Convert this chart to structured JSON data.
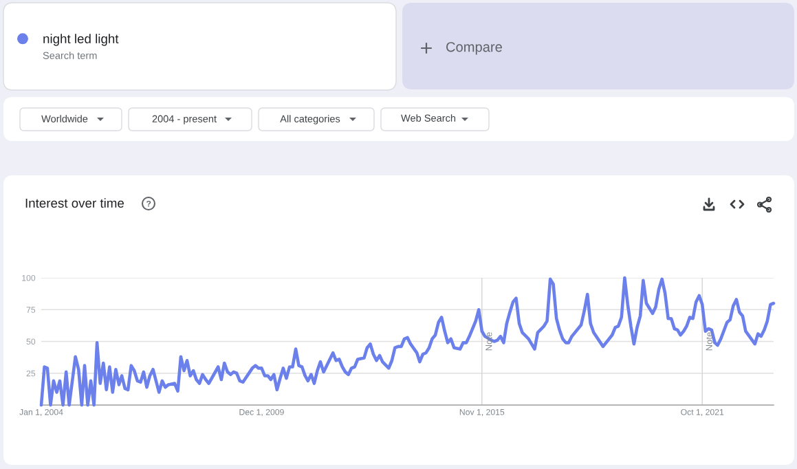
{
  "chart_data": {
    "type": "line",
    "title": "Interest over time",
    "x": [
      "2004-01",
      "2004-02",
      "2004-03",
      "2004-04",
      "2004-05",
      "2004-06",
      "2004-07",
      "2004-08",
      "2004-09",
      "2004-10",
      "2004-12",
      "2005-01",
      "2005-02",
      "2005-03",
      "2005-04",
      "2005-05",
      "2005-06",
      "2005-07",
      "2005-08",
      "2005-09",
      "2005-10",
      "2005-11",
      "2005-12",
      "2006-01",
      "2006-02",
      "2006-03",
      "2006-04",
      "2006-05",
      "2006-06",
      "2006-07",
      "2006-08",
      "2006-09",
      "2006-10",
      "2006-11",
      "2006-12",
      "2007-01",
      "2007-03",
      "2007-04",
      "2007-05",
      "2007-06",
      "2007-08",
      "2007-09",
      "2007-10",
      "2007-11",
      "2007-12",
      "2008-01",
      "2008-02",
      "2008-03",
      "2008-04",
      "2008-05",
      "2008-06",
      "2008-07",
      "2008-10",
      "2008-11",
      "2008-12",
      "2009-01",
      "2009-02",
      "2009-03",
      "2009-04",
      "2009-05",
      "2009-06",
      "2009-09",
      "2009-10",
      "2009-11",
      "2009-12",
      "2010-01",
      "2010-02",
      "2010-03",
      "2010-04",
      "2010-05",
      "2010-06",
      "2010-07",
      "2010-08",
      "2010-09",
      "2010-10",
      "2010-11",
      "2010-12",
      "2011-01",
      "2011-02",
      "2011-03",
      "2011-04",
      "2011-05",
      "2011-06",
      "2011-07",
      "2011-08",
      "2011-11",
      "2011-12",
      "2012-01",
      "2012-02",
      "2012-03",
      "2012-04",
      "2012-05",
      "2012-06",
      "2012-07",
      "2012-09",
      "2012-10",
      "2012-11",
      "2012-12",
      "2013-01",
      "2013-02",
      "2013-03",
      "2013-05",
      "2013-06",
      "2013-07",
      "2013-08",
      "2013-09",
      "2013-10",
      "2013-11",
      "2013-12",
      "2014-02",
      "2014-03",
      "2014-04",
      "2014-05",
      "2014-06",
      "2014-07",
      "2014-08",
      "2014-09",
      "2014-10",
      "2014-11",
      "2014-12",
      "2015-01",
      "2015-02",
      "2015-04",
      "2015-05",
      "2015-06",
      "2015-07",
      "2015-09",
      "2015-10",
      "2015-11",
      "2015-12",
      "2016-02",
      "2016-03",
      "2016-04",
      "2016-05",
      "2016-06",
      "2016-07",
      "2016-08",
      "2016-09",
      "2016-10",
      "2016-11",
      "2016-12",
      "2017-02",
      "2017-04",
      "2017-05",
      "2017-07",
      "2017-08",
      "2017-09",
      "2017-10",
      "2017-11",
      "2017-12",
      "2018-01",
      "2018-02",
      "2018-03",
      "2018-04",
      "2018-07",
      "2018-08",
      "2018-09",
      "2018-10",
      "2018-11",
      "2019-02",
      "2019-05",
      "2019-06",
      "2019-07",
      "2019-08",
      "2019-09",
      "2019-10",
      "2019-11",
      "2019-12",
      "2020-01",
      "2020-02",
      "2020-03",
      "2020-04",
      "2020-06",
      "2020-07",
      "2020-08",
      "2020-09",
      "2020-10",
      "2020-11",
      "2020-12",
      "2021-01",
      "2021-02",
      "2021-03",
      "2021-04",
      "2021-05",
      "2021-06",
      "2021-07",
      "2021-08",
      "2021-09",
      "2021-10",
      "2021-11",
      "2021-12",
      "2022-01",
      "2022-02",
      "2022-03",
      "2022-04",
      "2022-06",
      "2022-07",
      "2022-08",
      "2022-09",
      "2022-10",
      "2022-11",
      "2022-12",
      "2023-03",
      "2023-04",
      "2023-05",
      "2023-06",
      "2023-07",
      "2023-08",
      "2023-09"
    ],
    "series": [
      {
        "name": "night led light",
        "color": "#6b80ea",
        "values": [
          0,
          30,
          29,
          0,
          19,
          10,
          19,
          0,
          26,
          0,
          38,
          28,
          0,
          31,
          0,
          19,
          0,
          49,
          17,
          33,
          12,
          30,
          10,
          28,
          16,
          23,
          13,
          12,
          31,
          27,
          19,
          18,
          26,
          14,
          23,
          28,
          10,
          19,
          14,
          16,
          17,
          11,
          38,
          27,
          35,
          23,
          27,
          20,
          17,
          24,
          20,
          17,
          30,
          20,
          33,
          26,
          24,
          26,
          25,
          19,
          18,
          29,
          31,
          29,
          29,
          23,
          23,
          20,
          24,
          12,
          21,
          29,
          21,
          30,
          30,
          44,
          31,
          30,
          23,
          19,
          24,
          17,
          27,
          34,
          26,
          41,
          35,
          36,
          30,
          26,
          24,
          29,
          30,
          36,
          37,
          45,
          48,
          40,
          35,
          39,
          34,
          29,
          35,
          45,
          46,
          46,
          52,
          53,
          48,
          41,
          34,
          40,
          41,
          45,
          52,
          55,
          65,
          69,
          58,
          49,
          52,
          45,
          44,
          49,
          49,
          54,
          66,
          75,
          58,
          54,
          51,
          50,
          51,
          54,
          49,
          64,
          73,
          81,
          84,
          64,
          57,
          52,
          44,
          57,
          62,
          66,
          99,
          95,
          68,
          59,
          52,
          49,
          49,
          54,
          63,
          74,
          87,
          64,
          57,
          46,
          55,
          61,
          62,
          69,
          100,
          79,
          62,
          48,
          61,
          70,
          98,
          80,
          72,
          77,
          91,
          99,
          88,
          68,
          68,
          60,
          59,
          55,
          58,
          62,
          69,
          68,
          81,
          86,
          79,
          58,
          60,
          59,
          49,
          47,
          52,
          65,
          67,
          78,
          83,
          73,
          70,
          58,
          48,
          56,
          54,
          59,
          66,
          79,
          80
        ]
      }
    ],
    "xlim": [
      "2004-01",
      "2023-09"
    ],
    "ylim": [
      0,
      100
    ],
    "xticks": [
      {
        "value": "2004-01-01",
        "label": "Jan 1, 2004"
      },
      {
        "value": "2009-12-01",
        "label": "Dec 1, 2009"
      },
      {
        "value": "2015-11-01",
        "label": "Nov 1, 2015"
      },
      {
        "value": "2021-10-01",
        "label": "Oct 1, 2021"
      }
    ],
    "yticks": [
      25,
      50,
      75,
      100
    ],
    "grid": "y",
    "legend": "top left",
    "ref_lines": [
      {
        "axis": "x",
        "value": "2015-11-01",
        "label": "Note",
        "color": "#d4d4d4"
      },
      {
        "axis": "x",
        "value": "2021-10-01",
        "label": "Note",
        "color": "#d4d4d4"
      }
    ],
    "annotations": [
      "Search term",
      "Compare",
      "Worldwide",
      "2004 - present",
      "All categories",
      "Web Search"
    ]
  }
}
